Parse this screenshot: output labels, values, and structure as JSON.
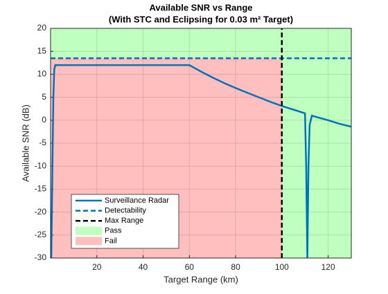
{
  "chart_data": {
    "type": "line",
    "title": "Available SNR vs Range",
    "subtitle": "(With STC and Eclipsing for 0.03 m² Target)",
    "x_label": "Target Range (km)",
    "y_label": "Available SNR (dB)",
    "xlim": [
      0,
      130
    ],
    "xticks": [
      20,
      40,
      60,
      80,
      100,
      120
    ],
    "ylim": [
      -30,
      20
    ],
    "yticks": [
      -30,
      -25,
      -20,
      -15,
      -10,
      -5,
      0,
      5,
      10,
      15,
      20
    ],
    "grid": true,
    "legend": "lower-left",
    "series": [
      {
        "name": "Surveillance Radar",
        "color": "#0072bd",
        "line_style": "solid",
        "x": [
          0.3,
          0.8,
          1.2,
          1.6,
          2,
          60,
          65,
          70,
          75,
          80,
          85,
          90,
          95,
          100,
          105,
          110,
          110.5,
          111,
          111.5,
          112,
          113,
          115,
          120,
          125,
          130
        ],
        "values": [
          -30,
          -10,
          5,
          11,
          12,
          12,
          10.6,
          9.3,
          8.1,
          7.0,
          6.0,
          5.0,
          4.0,
          3.1,
          2.3,
          1.5,
          -10,
          -30,
          -10,
          -1,
          1.0,
          0.7,
          0.0,
          -0.8,
          -1.4
        ]
      },
      {
        "name": "Detectability",
        "color": "#0072bd",
        "line_style": "dashed",
        "x": [
          0,
          130
        ],
        "values": [
          13.5,
          13.5
        ]
      },
      {
        "name": "Max Range",
        "color": "#000000",
        "line_style": "dashed",
        "x": [
          100,
          100
        ],
        "values": [
          -30,
          20
        ]
      }
    ],
    "regions": [
      {
        "name": "Pass",
        "color": "#bfffbf"
      },
      {
        "name": "Fail",
        "color": "#ffbfbf"
      }
    ]
  }
}
